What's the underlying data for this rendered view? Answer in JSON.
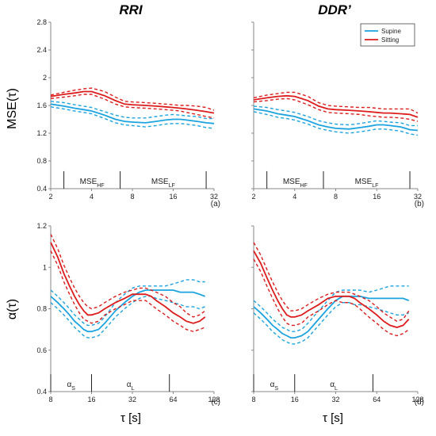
{
  "figure": {
    "column_titles": [
      "RRI",
      "DDR’"
    ],
    "y_titles": [
      "MSE(τ)",
      "α(τ)"
    ],
    "x_title": "τ [s]",
    "legend": [
      "Supine",
      "Sitting"
    ],
    "colors": {
      "supine": "#1ba3e0",
      "sitting": "#dd1c1c"
    }
  },
  "chart_data": [
    {
      "type": "line",
      "panel": "a",
      "column_title": "RRI",
      "ylabel": "MSE(τ)",
      "x_scale": "log2",
      "xlim": [
        2,
        32
      ],
      "x_ticks": [
        2,
        4,
        8,
        16,
        32
      ],
      "ylim": [
        0.4,
        2.8
      ],
      "y_ticks": [
        "0.4",
        "0.8",
        "1.2",
        "1.6",
        "2",
        "2.4",
        "2.8"
      ],
      "grid": false,
      "regions": [
        {
          "label": "MSE",
          "sub": "HF",
          "from": 2.5,
          "to": 6.5
        },
        {
          "label": "MSE",
          "sub": "LF",
          "from": 6.5,
          "to": 28
        }
      ],
      "x": [
        2,
        2.5,
        3,
        3.5,
        4,
        5,
        6,
        7,
        8,
        10,
        12,
        14,
        16,
        18,
        20,
        24,
        28,
        32
      ],
      "series": [
        {
          "name": "Supine",
          "mean": [
            1.62,
            1.59,
            1.56,
            1.54,
            1.52,
            1.46,
            1.4,
            1.37,
            1.36,
            1.35,
            1.37,
            1.39,
            1.4,
            1.4,
            1.39,
            1.37,
            1.35,
            1.34
          ],
          "upper": [
            1.66,
            1.64,
            1.61,
            1.59,
            1.57,
            1.51,
            1.46,
            1.43,
            1.42,
            1.42,
            1.44,
            1.46,
            1.47,
            1.46,
            1.45,
            1.44,
            1.41,
            1.41
          ],
          "lower": [
            1.58,
            1.55,
            1.52,
            1.5,
            1.48,
            1.41,
            1.35,
            1.32,
            1.31,
            1.29,
            1.31,
            1.33,
            1.34,
            1.34,
            1.33,
            1.31,
            1.28,
            1.27
          ]
        },
        {
          "name": "Sitting",
          "mean": [
            1.73,
            1.76,
            1.78,
            1.8,
            1.8,
            1.74,
            1.67,
            1.62,
            1.61,
            1.6,
            1.59,
            1.58,
            1.57,
            1.56,
            1.55,
            1.53,
            1.51,
            1.49
          ],
          "upper": [
            1.75,
            1.79,
            1.82,
            1.84,
            1.85,
            1.8,
            1.72,
            1.66,
            1.65,
            1.64,
            1.63,
            1.62,
            1.61,
            1.6,
            1.6,
            1.59,
            1.57,
            1.53
          ],
          "lower": [
            1.7,
            1.72,
            1.74,
            1.76,
            1.76,
            1.69,
            1.62,
            1.58,
            1.57,
            1.56,
            1.55,
            1.54,
            1.53,
            1.52,
            1.5,
            1.47,
            1.44,
            1.42
          ]
        }
      ],
      "panel_label": "(a)"
    },
    {
      "type": "line",
      "panel": "b",
      "column_title": "DDR’",
      "ylabel": "",
      "x_scale": "log2",
      "xlim": [
        2,
        32
      ],
      "x_ticks": [
        2,
        4,
        8,
        16,
        32
      ],
      "ylim": [
        0.4,
        2.8
      ],
      "y_ticks": [],
      "grid": false,
      "legend": [
        "Supine",
        "Sitting"
      ],
      "legend_position": "top-right",
      "regions": [
        {
          "label": "MSE",
          "sub": "HF",
          "from": 2.5,
          "to": 6.5
        },
        {
          "label": "MSE",
          "sub": "LF",
          "from": 6.5,
          "to": 28
        }
      ],
      "x": [
        2,
        2.5,
        3,
        3.5,
        4,
        5,
        6,
        7,
        8,
        10,
        12,
        14,
        16,
        18,
        20,
        24,
        28,
        32
      ],
      "series": [
        {
          "name": "Supine",
          "mean": [
            1.55,
            1.52,
            1.48,
            1.46,
            1.44,
            1.38,
            1.32,
            1.29,
            1.27,
            1.26,
            1.28,
            1.3,
            1.32,
            1.32,
            1.31,
            1.29,
            1.25,
            1.24
          ],
          "upper": [
            1.59,
            1.57,
            1.54,
            1.52,
            1.5,
            1.44,
            1.38,
            1.35,
            1.33,
            1.32,
            1.34,
            1.36,
            1.38,
            1.37,
            1.36,
            1.35,
            1.31,
            1.31
          ],
          "lower": [
            1.51,
            1.47,
            1.43,
            1.41,
            1.39,
            1.33,
            1.27,
            1.24,
            1.22,
            1.2,
            1.22,
            1.24,
            1.26,
            1.26,
            1.25,
            1.23,
            1.19,
            1.17
          ]
        },
        {
          "name": "Sitting",
          "mean": [
            1.68,
            1.71,
            1.73,
            1.74,
            1.73,
            1.67,
            1.59,
            1.55,
            1.54,
            1.53,
            1.52,
            1.51,
            1.5,
            1.49,
            1.49,
            1.48,
            1.47,
            1.43
          ],
          "upper": [
            1.71,
            1.75,
            1.77,
            1.79,
            1.79,
            1.73,
            1.64,
            1.6,
            1.59,
            1.58,
            1.57,
            1.57,
            1.56,
            1.55,
            1.55,
            1.55,
            1.55,
            1.49
          ],
          "lower": [
            1.65,
            1.67,
            1.69,
            1.7,
            1.68,
            1.61,
            1.54,
            1.5,
            1.49,
            1.48,
            1.47,
            1.45,
            1.44,
            1.43,
            1.43,
            1.42,
            1.4,
            1.37
          ]
        }
      ],
      "panel_label": "(b)"
    },
    {
      "type": "line",
      "panel": "c",
      "ylabel": "α(τ)",
      "x_scale": "log2",
      "xlim": [
        8,
        128
      ],
      "x_ticks": [
        8,
        16,
        32,
        64,
        128
      ],
      "ylim": [
        0.4,
        1.2
      ],
      "y_ticks": [
        "0.4",
        "0.6",
        "0.8",
        "1",
        "1.2"
      ],
      "grid": false,
      "regions": [
        {
          "label": "α",
          "sub": "S",
          "from": 8,
          "to": 16
        },
        {
          "label": "α",
          "sub": "L",
          "from": 16,
          "to": 60
        }
      ],
      "x": [
        8,
        9,
        10,
        11,
        12,
        13,
        14,
        15,
        16,
        18,
        20,
        24,
        28,
        32,
        36,
        40,
        44,
        48,
        56,
        64,
        72,
        80,
        90,
        100,
        110
      ],
      "series": [
        {
          "name": "Supine",
          "mean": [
            0.86,
            0.83,
            0.8,
            0.77,
            0.74,
            0.72,
            0.7,
            0.69,
            0.69,
            0.7,
            0.73,
            0.79,
            0.83,
            0.86,
            0.88,
            0.89,
            0.89,
            0.89,
            0.89,
            0.89,
            0.88,
            0.88,
            0.88,
            0.87,
            0.86
          ],
          "upper": [
            0.89,
            0.86,
            0.83,
            0.8,
            0.77,
            0.75,
            0.73,
            0.72,
            0.72,
            0.73,
            0.76,
            0.83,
            0.87,
            0.9,
            0.91,
            0.91,
            0.91,
            0.91,
            0.91,
            0.92,
            0.93,
            0.94,
            0.94,
            0.93,
            0.93
          ],
          "lower": [
            0.83,
            0.8,
            0.77,
            0.74,
            0.71,
            0.69,
            0.67,
            0.66,
            0.66,
            0.67,
            0.7,
            0.76,
            0.8,
            0.83,
            0.85,
            0.86,
            0.86,
            0.85,
            0.84,
            0.83,
            0.82,
            0.81,
            0.81,
            0.8,
            0.81
          ]
        },
        {
          "name": "Sitting",
          "mean": [
            1.12,
            1.05,
            0.97,
            0.91,
            0.86,
            0.82,
            0.79,
            0.77,
            0.77,
            0.78,
            0.8,
            0.83,
            0.85,
            0.87,
            0.87,
            0.87,
            0.86,
            0.84,
            0.81,
            0.78,
            0.76,
            0.74,
            0.73,
            0.74,
            0.76
          ],
          "upper": [
            1.16,
            1.09,
            1.01,
            0.95,
            0.9,
            0.86,
            0.83,
            0.81,
            0.8,
            0.81,
            0.83,
            0.86,
            0.88,
            0.89,
            0.9,
            0.9,
            0.89,
            0.88,
            0.86,
            0.83,
            0.81,
            0.78,
            0.76,
            0.77,
            0.79
          ],
          "lower": [
            1.08,
            1.01,
            0.93,
            0.87,
            0.82,
            0.78,
            0.75,
            0.74,
            0.73,
            0.74,
            0.77,
            0.8,
            0.82,
            0.84,
            0.84,
            0.84,
            0.82,
            0.8,
            0.77,
            0.74,
            0.72,
            0.7,
            0.69,
            0.7,
            0.71
          ]
        }
      ],
      "panel_label": "(c)"
    },
    {
      "type": "line",
      "panel": "d",
      "ylabel": "",
      "x_scale": "log2",
      "xlim": [
        8,
        128
      ],
      "x_ticks": [
        8,
        16,
        32,
        64,
        128
      ],
      "ylim": [
        0.4,
        1.2
      ],
      "y_ticks": [],
      "grid": false,
      "regions": [
        {
          "label": "α",
          "sub": "S",
          "from": 8,
          "to": 16
        },
        {
          "label": "α",
          "sub": "L",
          "from": 16,
          "to": 60
        }
      ],
      "x": [
        8,
        9,
        10,
        11,
        12,
        13,
        14,
        15,
        16,
        18,
        20,
        24,
        28,
        32,
        36,
        40,
        44,
        48,
        56,
        64,
        72,
        80,
        90,
        100,
        110
      ],
      "series": [
        {
          "name": "Supine",
          "mean": [
            0.81,
            0.78,
            0.75,
            0.72,
            0.7,
            0.68,
            0.67,
            0.66,
            0.66,
            0.67,
            0.69,
            0.75,
            0.8,
            0.84,
            0.86,
            0.86,
            0.86,
            0.86,
            0.85,
            0.85,
            0.85,
            0.85,
            0.85,
            0.85,
            0.84
          ],
          "upper": [
            0.84,
            0.81,
            0.78,
            0.75,
            0.73,
            0.71,
            0.7,
            0.69,
            0.69,
            0.7,
            0.73,
            0.79,
            0.84,
            0.88,
            0.89,
            0.89,
            0.89,
            0.89,
            0.88,
            0.89,
            0.9,
            0.91,
            0.91,
            0.91,
            0.91
          ],
          "lower": [
            0.78,
            0.75,
            0.72,
            0.69,
            0.67,
            0.65,
            0.64,
            0.63,
            0.63,
            0.64,
            0.66,
            0.72,
            0.77,
            0.81,
            0.83,
            0.83,
            0.82,
            0.82,
            0.81,
            0.8,
            0.79,
            0.78,
            0.77,
            0.77,
            0.78
          ]
        },
        {
          "name": "Sitting",
          "mean": [
            1.08,
            1.02,
            0.95,
            0.89,
            0.84,
            0.8,
            0.77,
            0.76,
            0.76,
            0.77,
            0.79,
            0.82,
            0.85,
            0.86,
            0.86,
            0.86,
            0.85,
            0.83,
            0.8,
            0.77,
            0.74,
            0.72,
            0.71,
            0.72,
            0.75
          ],
          "upper": [
            1.12,
            1.06,
            0.99,
            0.93,
            0.88,
            0.84,
            0.81,
            0.79,
            0.79,
            0.8,
            0.82,
            0.85,
            0.87,
            0.88,
            0.88,
            0.88,
            0.87,
            0.86,
            0.84,
            0.81,
            0.78,
            0.76,
            0.74,
            0.75,
            0.79
          ],
          "lower": [
            1.04,
            0.98,
            0.91,
            0.85,
            0.8,
            0.76,
            0.73,
            0.72,
            0.72,
            0.73,
            0.76,
            0.79,
            0.82,
            0.84,
            0.83,
            0.83,
            0.82,
            0.8,
            0.76,
            0.73,
            0.7,
            0.68,
            0.67,
            0.68,
            0.7
          ]
        }
      ],
      "panel_label": "(d)"
    }
  ]
}
